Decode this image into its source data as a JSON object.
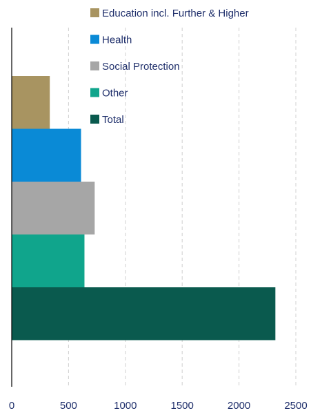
{
  "chart_data": {
    "type": "bar",
    "orientation": "horizontal",
    "categories": [
      "Education incl. Further & Higher",
      "Health",
      "Social Protection",
      "Other",
      "Total"
    ],
    "values": [
      335,
      610,
      730,
      640,
      2320
    ],
    "colors": [
      "#a89461",
      "#0a8ad6",
      "#a6a6a6",
      "#10a58c",
      "#0a5a4e"
    ],
    "xlim": [
      0,
      2500
    ],
    "xticks": [
      0,
      500,
      1000,
      1500,
      2000,
      2500
    ],
    "grid": "vertical-dashed",
    "legend": {
      "placement": "top-right",
      "items": [
        {
          "label": "Education incl. Further & Higher",
          "color": "#a89461"
        },
        {
          "label": "Health",
          "color": "#0a8ad6"
        },
        {
          "label": "Social Protection",
          "color": "#a6a6a6"
        },
        {
          "label": "Other",
          "color": "#10a58c"
        },
        {
          "label": "Total",
          "color": "#0a5a4e"
        }
      ]
    },
    "title": "",
    "xlabel": "",
    "ylabel": ""
  }
}
